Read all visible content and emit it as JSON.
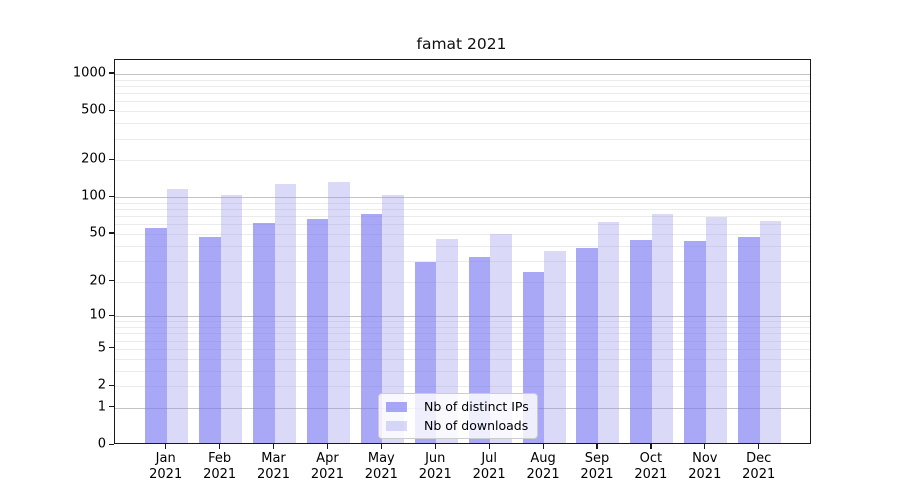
{
  "chart_data": {
    "type": "bar",
    "title": "famat 2021",
    "year_label": "2021",
    "categories": [
      "Jan",
      "Feb",
      "Mar",
      "Apr",
      "May",
      "Jun",
      "Jul",
      "Aug",
      "Sep",
      "Oct",
      "Nov",
      "Dec"
    ],
    "series": [
      {
        "name": "Nb of distinct IPs",
        "color": "rgba(121,121,241,0.65)",
        "solid_color": "#a8a8f6",
        "values": [
          54,
          45,
          59,
          64,
          70,
          28,
          31,
          23,
          37,
          43,
          42,
          45
        ]
      },
      {
        "name": "Nb of downloads",
        "color": "rgba(149,149,235,0.35)",
        "solid_color": "#dadaf8",
        "values": [
          113,
          100,
          124,
          129,
          100,
          44,
          48,
          35,
          60,
          70,
          66,
          61
        ]
      }
    ],
    "y_ticks": [
      0,
      1,
      2,
      5,
      10,
      20,
      50,
      100,
      200,
      500,
      1000
    ],
    "y_tick_labels": [
      "0",
      "1",
      "2",
      "5",
      "10",
      "20",
      "50",
      "100",
      "200",
      "500",
      "1000"
    ],
    "y_scale": "log1p",
    "ylim": [
      0,
      1270
    ],
    "grid": {
      "major_at": [
        1,
        10,
        100,
        1000
      ],
      "minor_at": "2-9, 20-90, 200-900"
    },
    "legend_position": "lower center"
  },
  "colors": {
    "grid_major": "#c3c3c3",
    "grid_minor": "#ebebeb",
    "axis": "#1a1a1a",
    "background": "#ffffff"
  }
}
